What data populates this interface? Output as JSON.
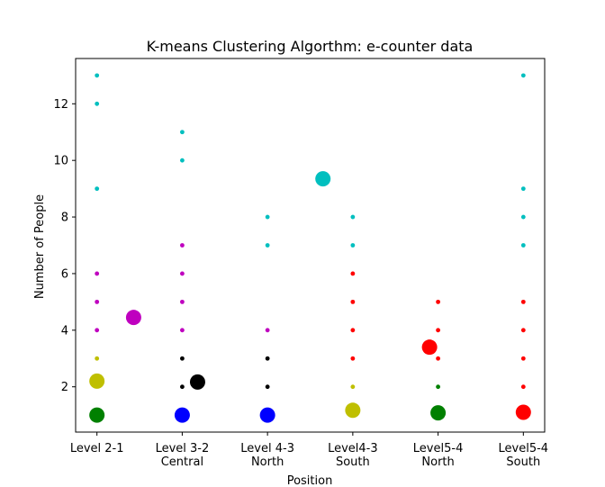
{
  "chart_data": {
    "type": "scatter",
    "title": "K-means Clustering Algorthm: e-counter data",
    "xlabel": "Position",
    "ylabel": "Number of People",
    "categories": [
      [
        "Level 2-1"
      ],
      [
        "Level 3-2",
        "Central"
      ],
      [
        "Level 4-3",
        "North"
      ],
      [
        "Level4-3",
        "South"
      ],
      [
        "Level5-4",
        "North"
      ],
      [
        "Level5-4",
        "South"
      ]
    ],
    "xlim": [
      -0.25,
      5.25
    ],
    "ylim": [
      0.4,
      13.6
    ],
    "yticks": [
      2,
      4,
      6,
      8,
      10,
      12
    ],
    "grid": false,
    "colors": {
      "cyan": "#00bfbf",
      "magenta": "#bf00bf",
      "yellow": "#bfbf00",
      "green": "#008000",
      "black": "#000000",
      "blue": "#0000ff",
      "red": "#ff0000"
    },
    "points": [
      {
        "x": 0,
        "y": 13,
        "c": "cyan"
      },
      {
        "x": 0,
        "y": 12,
        "c": "cyan"
      },
      {
        "x": 0,
        "y": 9,
        "c": "cyan"
      },
      {
        "x": 0,
        "y": 6,
        "c": "magenta"
      },
      {
        "x": 0,
        "y": 5,
        "c": "magenta"
      },
      {
        "x": 0,
        "y": 4,
        "c": "magenta"
      },
      {
        "x": 0,
        "y": 3,
        "c": "yellow"
      },
      {
        "x": 1,
        "y": 11,
        "c": "cyan"
      },
      {
        "x": 1,
        "y": 10,
        "c": "cyan"
      },
      {
        "x": 1,
        "y": 7,
        "c": "magenta"
      },
      {
        "x": 1,
        "y": 6,
        "c": "magenta"
      },
      {
        "x": 1,
        "y": 5,
        "c": "magenta"
      },
      {
        "x": 1,
        "y": 4,
        "c": "magenta"
      },
      {
        "x": 1,
        "y": 3,
        "c": "black"
      },
      {
        "x": 1,
        "y": 2,
        "c": "black"
      },
      {
        "x": 2,
        "y": 8,
        "c": "cyan"
      },
      {
        "x": 2,
        "y": 7,
        "c": "cyan"
      },
      {
        "x": 2,
        "y": 4,
        "c": "magenta"
      },
      {
        "x": 2,
        "y": 3,
        "c": "black"
      },
      {
        "x": 2,
        "y": 2,
        "c": "black"
      },
      {
        "x": 3,
        "y": 8,
        "c": "cyan"
      },
      {
        "x": 3,
        "y": 7,
        "c": "cyan"
      },
      {
        "x": 3,
        "y": 6,
        "c": "red"
      },
      {
        "x": 3,
        "y": 5,
        "c": "red"
      },
      {
        "x": 3,
        "y": 4,
        "c": "red"
      },
      {
        "x": 3,
        "y": 3,
        "c": "red"
      },
      {
        "x": 3,
        "y": 2,
        "c": "yellow"
      },
      {
        "x": 4,
        "y": 5,
        "c": "red"
      },
      {
        "x": 4,
        "y": 4,
        "c": "red"
      },
      {
        "x": 4,
        "y": 3,
        "c": "red"
      },
      {
        "x": 4,
        "y": 2,
        "c": "green"
      },
      {
        "x": 5,
        "y": 13,
        "c": "cyan"
      },
      {
        "x": 5,
        "y": 9,
        "c": "cyan"
      },
      {
        "x": 5,
        "y": 8,
        "c": "cyan"
      },
      {
        "x": 5,
        "y": 7,
        "c": "cyan"
      },
      {
        "x": 5,
        "y": 5,
        "c": "red"
      },
      {
        "x": 5,
        "y": 4,
        "c": "red"
      },
      {
        "x": 5,
        "y": 3,
        "c": "red"
      },
      {
        "x": 5,
        "y": 2,
        "c": "red"
      }
    ],
    "centroids": [
      {
        "x": 0,
        "y": 1.0,
        "c": "green"
      },
      {
        "x": 0,
        "y": 2.2,
        "c": "yellow"
      },
      {
        "x": 0.43,
        "y": 4.45,
        "c": "magenta"
      },
      {
        "x": 1,
        "y": 1.0,
        "c": "blue"
      },
      {
        "x": 1.18,
        "y": 2.17,
        "c": "black"
      },
      {
        "x": 2,
        "y": 1.0,
        "c": "blue"
      },
      {
        "x": 2.65,
        "y": 9.35,
        "c": "cyan"
      },
      {
        "x": 3,
        "y": 1.17,
        "c": "yellow"
      },
      {
        "x": 3.9,
        "y": 3.4,
        "c": "red"
      },
      {
        "x": 4,
        "y": 1.08,
        "c": "green"
      },
      {
        "x": 5,
        "y": 1.1,
        "c": "red"
      }
    ]
  }
}
